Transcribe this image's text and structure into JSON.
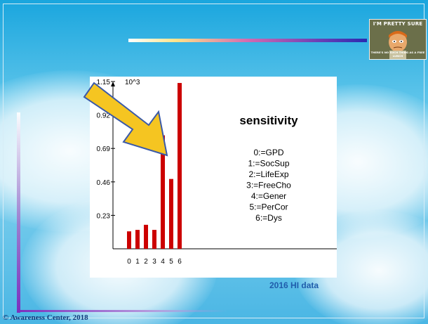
{
  "chart_data": {
    "type": "bar",
    "title": "sensitivity",
    "scale_label": "10^3",
    "categories": [
      "0",
      "1",
      "2",
      "3",
      "4",
      "5",
      "6"
    ],
    "values": [
      0.12,
      0.13,
      0.165,
      0.13,
      0.78,
      0.48,
      1.14
    ],
    "yticks": [
      "0.23",
      "0.46",
      "0.69",
      "0.92",
      "1.15"
    ],
    "ylim": [
      0,
      1.15
    ],
    "bar_color": "#cc0000",
    "legend": [
      "0:=GPD",
      "1:=SocSup",
      "2:=LifeExp",
      "3:=FreeCho",
      "4:=Gener",
      "5:=PerCor",
      "6:=Dys"
    ],
    "grid": false,
    "legend_placement": "right"
  },
  "caption": "2016 HI data",
  "copyright": "© Awareness Center, 2018",
  "meme": {
    "top_text": "I'M PRETTY SURE",
    "bottom_text": "THERE'S NO SUCH THING AS A FREE LUNCH"
  },
  "colors": {
    "background": "#4ab6e4",
    "arrow_fill": "#f5c521",
    "arrow_stroke": "#3b5aa8",
    "caption": "#1f5cab"
  }
}
